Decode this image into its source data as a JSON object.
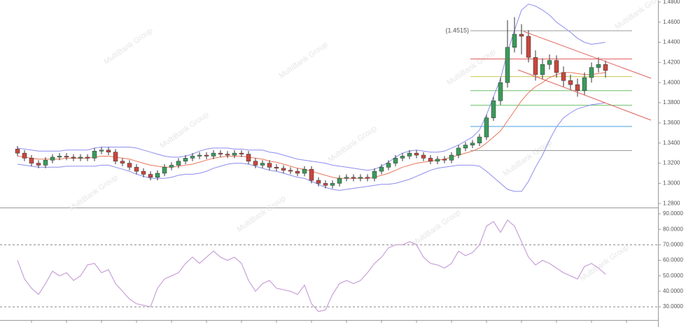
{
  "chart_data": [
    {
      "type": "candlestick",
      "open": [
        1.334,
        1.33,
        1.325,
        1.32,
        1.318,
        1.323,
        1.326,
        1.327,
        1.326,
        1.325,
        1.326,
        1.325,
        1.332,
        1.333,
        1.331,
        1.322,
        1.32,
        1.316,
        1.312,
        1.309,
        1.306,
        1.31,
        1.316,
        1.318,
        1.322,
        1.325,
        1.327,
        1.328,
        1.327,
        1.33,
        1.329,
        1.328,
        1.33,
        1.329,
        1.322,
        1.318,
        1.32,
        1.316,
        1.315,
        1.313,
        1.312,
        1.31,
        1.314,
        1.303,
        1.3,
        1.298,
        1.3,
        1.305,
        1.306,
        1.305,
        1.306,
        1.305,
        1.312,
        1.316,
        1.32,
        1.325,
        1.327,
        1.33,
        1.328,
        1.325,
        1.322,
        1.324,
        1.323,
        1.328,
        1.335,
        1.338,
        1.34,
        1.346,
        1.365,
        1.382,
        1.4,
        1.435,
        1.448,
        1.446,
        1.425,
        1.408,
        1.418,
        1.422,
        1.41,
        1.402,
        1.398,
        1.392,
        1.405,
        1.415,
        1.418
      ],
      "high": [
        1.337,
        1.333,
        1.328,
        1.323,
        1.326,
        1.329,
        1.33,
        1.33,
        1.329,
        1.329,
        1.329,
        1.335,
        1.336,
        1.336,
        1.334,
        1.325,
        1.323,
        1.319,
        1.315,
        1.312,
        1.313,
        1.319,
        1.321,
        1.325,
        1.328,
        1.33,
        1.331,
        1.331,
        1.333,
        1.333,
        1.332,
        1.333,
        1.333,
        1.332,
        1.325,
        1.323,
        1.323,
        1.319,
        1.318,
        1.316,
        1.315,
        1.317,
        1.317,
        1.306,
        1.303,
        1.303,
        1.308,
        1.309,
        1.309,
        1.309,
        1.309,
        1.315,
        1.319,
        1.323,
        1.328,
        1.33,
        1.333,
        1.333,
        1.331,
        1.328,
        1.327,
        1.327,
        1.331,
        1.338,
        1.341,
        1.343,
        1.349,
        1.368,
        1.386,
        1.405,
        1.462,
        1.465,
        1.458,
        1.452,
        1.432,
        1.424,
        1.428,
        1.427,
        1.416,
        1.408,
        1.404,
        1.41,
        1.42,
        1.425,
        1.422
      ],
      "low": [
        1.327,
        1.322,
        1.317,
        1.315,
        1.315,
        1.32,
        1.323,
        1.323,
        1.322,
        1.322,
        1.322,
        1.322,
        1.329,
        1.328,
        1.319,
        1.317,
        1.313,
        1.309,
        1.306,
        1.303,
        1.303,
        1.307,
        1.313,
        1.315,
        1.319,
        1.322,
        1.324,
        1.324,
        1.324,
        1.326,
        1.325,
        1.325,
        1.326,
        1.319,
        1.315,
        1.315,
        1.313,
        1.312,
        1.31,
        1.309,
        1.307,
        1.307,
        1.3,
        1.297,
        1.295,
        1.295,
        1.297,
        1.302,
        1.302,
        1.302,
        1.302,
        1.302,
        1.309,
        1.313,
        1.317,
        1.322,
        1.324,
        1.325,
        1.322,
        1.319,
        1.319,
        1.32,
        1.32,
        1.325,
        1.332,
        1.335,
        1.337,
        1.343,
        1.362,
        1.378,
        1.395,
        1.43,
        1.428,
        1.42,
        1.402,
        1.403,
        1.413,
        1.405,
        1.396,
        1.393,
        1.386,
        1.388,
        1.4,
        1.41,
        1.405
      ],
      "close": [
        1.33,
        1.325,
        1.32,
        1.318,
        1.323,
        1.326,
        1.327,
        1.326,
        1.325,
        1.326,
        1.325,
        1.332,
        1.333,
        1.331,
        1.322,
        1.32,
        1.316,
        1.312,
        1.309,
        1.306,
        1.31,
        1.316,
        1.318,
        1.322,
        1.325,
        1.327,
        1.328,
        1.327,
        1.33,
        1.329,
        1.328,
        1.33,
        1.329,
        1.322,
        1.318,
        1.32,
        1.316,
        1.315,
        1.313,
        1.312,
        1.31,
        1.314,
        1.303,
        1.3,
        1.298,
        1.3,
        1.305,
        1.306,
        1.305,
        1.306,
        1.305,
        1.312,
        1.316,
        1.32,
        1.325,
        1.327,
        1.33,
        1.328,
        1.325,
        1.322,
        1.324,
        1.323,
        1.328,
        1.335,
        1.338,
        1.34,
        1.346,
        1.365,
        1.382,
        1.4,
        1.435,
        1.448,
        1.446,
        1.425,
        1.408,
        1.418,
        1.422,
        1.41,
        1.402,
        1.398,
        1.392,
        1.405,
        1.415,
        1.418,
        1.412
      ],
      "up_color": "#3a9a5a",
      "down_color": "#c8463c",
      "series": [
        {
          "color": "#8c8cf0",
          "values": [
            1.335,
            1.334,
            1.333,
            1.332,
            1.332,
            1.332,
            1.332,
            1.333,
            1.333,
            1.333,
            1.333,
            1.335,
            1.336,
            1.336,
            1.336,
            1.336,
            1.336,
            1.335,
            1.333,
            1.331,
            1.329,
            1.327,
            1.326,
            1.326,
            1.327,
            1.329,
            1.332,
            1.334,
            1.335,
            1.335,
            1.335,
            1.334,
            1.334,
            1.333,
            1.333,
            1.333,
            1.331,
            1.33,
            1.328,
            1.326,
            1.324,
            1.323,
            1.322,
            1.321,
            1.32,
            1.318,
            1.317,
            1.316,
            1.315,
            1.314,
            1.313,
            1.314,
            1.317,
            1.321,
            1.326,
            1.33,
            1.332,
            1.333,
            1.332,
            1.331,
            1.331,
            1.332,
            1.335,
            1.338,
            1.342,
            1.346,
            1.353,
            1.368,
            1.386,
            1.404,
            1.43,
            1.452,
            1.472,
            1.478,
            1.476,
            1.472,
            1.467,
            1.46,
            1.455,
            1.45,
            1.444,
            1.44,
            1.438,
            1.439,
            1.44
          ]
        },
        {
          "color": "#e8785a",
          "values": [
            1.327,
            1.326,
            1.325,
            1.324,
            1.324,
            1.324,
            1.324,
            1.325,
            1.325,
            1.325,
            1.325,
            1.326,
            1.327,
            1.327,
            1.326,
            1.325,
            1.324,
            1.322,
            1.32,
            1.318,
            1.317,
            1.316,
            1.316,
            1.317,
            1.318,
            1.319,
            1.321,
            1.323,
            1.325,
            1.326,
            1.327,
            1.327,
            1.327,
            1.326,
            1.325,
            1.324,
            1.322,
            1.321,
            1.319,
            1.317,
            1.315,
            1.314,
            1.312,
            1.31,
            1.308,
            1.306,
            1.305,
            1.305,
            1.305,
            1.305,
            1.305,
            1.306,
            1.308,
            1.31,
            1.313,
            1.316,
            1.318,
            1.32,
            1.321,
            1.322,
            1.323,
            1.324,
            1.326,
            1.328,
            1.33,
            1.332,
            1.335,
            1.34,
            1.346,
            1.352,
            1.362,
            1.372,
            1.382,
            1.39,
            1.396,
            1.4,
            1.405,
            1.408,
            1.41,
            1.41,
            1.409,
            1.408,
            1.408,
            1.409,
            1.41
          ]
        },
        {
          "color": "#8c8cf0",
          "values": [
            1.319,
            1.318,
            1.317,
            1.316,
            1.316,
            1.316,
            1.316,
            1.317,
            1.317,
            1.317,
            1.317,
            1.317,
            1.318,
            1.318,
            1.316,
            1.314,
            1.312,
            1.309,
            1.307,
            1.305,
            1.305,
            1.305,
            1.306,
            1.308,
            1.309,
            1.309,
            1.31,
            1.312,
            1.315,
            1.317,
            1.319,
            1.32,
            1.32,
            1.319,
            1.317,
            1.315,
            1.313,
            1.312,
            1.31,
            1.308,
            1.306,
            1.305,
            1.302,
            1.299,
            1.296,
            1.294,
            1.293,
            1.294,
            1.295,
            1.296,
            1.297,
            1.298,
            1.299,
            1.299,
            1.3,
            1.302,
            1.304,
            1.307,
            1.31,
            1.313,
            1.315,
            1.316,
            1.317,
            1.318,
            1.318,
            1.318,
            1.317,
            1.312,
            1.306,
            1.3,
            1.294,
            1.292,
            1.292,
            1.302,
            1.316,
            1.328,
            1.343,
            1.356,
            1.365,
            1.37,
            1.374,
            1.376,
            1.378,
            1.379,
            1.38
          ]
        }
      ],
      "levels": [
        {
          "value": 1.4515,
          "label": "(1.4515)",
          "color": "#9a9a9a"
        },
        {
          "value": 1.4235,
          "color": "#e05a5a"
        },
        {
          "value": 1.406,
          "color": "#c8c850"
        },
        {
          "value": 1.392,
          "color": "#6cc06c"
        },
        {
          "value": 1.3775,
          "color": "#6cc06c"
        },
        {
          "value": 1.3565,
          "color": "#4aa0e0"
        },
        {
          "value": 1.3325,
          "color": "#9a9a9a"
        }
      ],
      "watermark": "MultiBank Group",
      "ylim": [
        1.276,
        1.482
      ],
      "yticks": [
        {
          "value": 1.28,
          "label": "1.2800"
        },
        {
          "value": 1.3,
          "label": "1.3000"
        },
        {
          "value": 1.32,
          "label": "1.3200"
        },
        {
          "value": 1.34,
          "label": "1.3400"
        },
        {
          "value": 1.36,
          "label": "1.3600"
        },
        {
          "value": 1.38,
          "label": "1.3800"
        },
        {
          "value": 1.4,
          "label": "1.4000"
        },
        {
          "value": 1.42,
          "label": "1.4200"
        },
        {
          "value": 1.44,
          "label": "1.4400"
        },
        {
          "value": 1.46,
          "label": "1.4600"
        },
        {
          "value": 1.48,
          "label": "1.4800"
        }
      ]
    },
    {
      "type": "line",
      "series": [
        {
          "color": "#c8a0d8",
          "values": [
            60,
            48,
            42,
            38,
            45,
            53,
            50,
            52,
            47,
            50,
            57,
            58,
            52,
            54,
            45,
            40,
            35,
            32,
            31,
            30,
            42,
            48,
            50,
            52,
            58,
            62,
            58,
            62,
            66,
            62,
            60,
            62,
            58,
            47,
            40,
            45,
            47,
            42,
            41,
            40,
            38,
            44,
            32,
            27,
            28,
            38,
            45,
            47,
            45,
            47,
            52,
            58,
            62,
            68,
            70,
            70,
            72,
            70,
            62,
            58,
            57,
            55,
            58,
            66,
            63,
            65,
            70,
            82,
            85,
            78,
            86,
            82,
            72,
            62,
            57,
            60,
            58,
            55,
            52,
            50,
            48,
            56,
            58,
            55,
            51
          ]
        }
      ],
      "reference_lines": [
        70,
        30
      ],
      "ylim": [
        21.5,
        92.7
      ],
      "yticks": [
        {
          "value": 30,
          "label": "30.0000"
        },
        {
          "value": 40,
          "label": "40.0000"
        },
        {
          "value": 50,
          "label": "50.0000"
        },
        {
          "value": 60,
          "label": "60.0000"
        },
        {
          "value": 70,
          "label": "70.0000"
        },
        {
          "value": 80,
          "label": "80.0000"
        },
        {
          "value": 90,
          "label": "90.0000"
        }
      ]
    }
  ]
}
